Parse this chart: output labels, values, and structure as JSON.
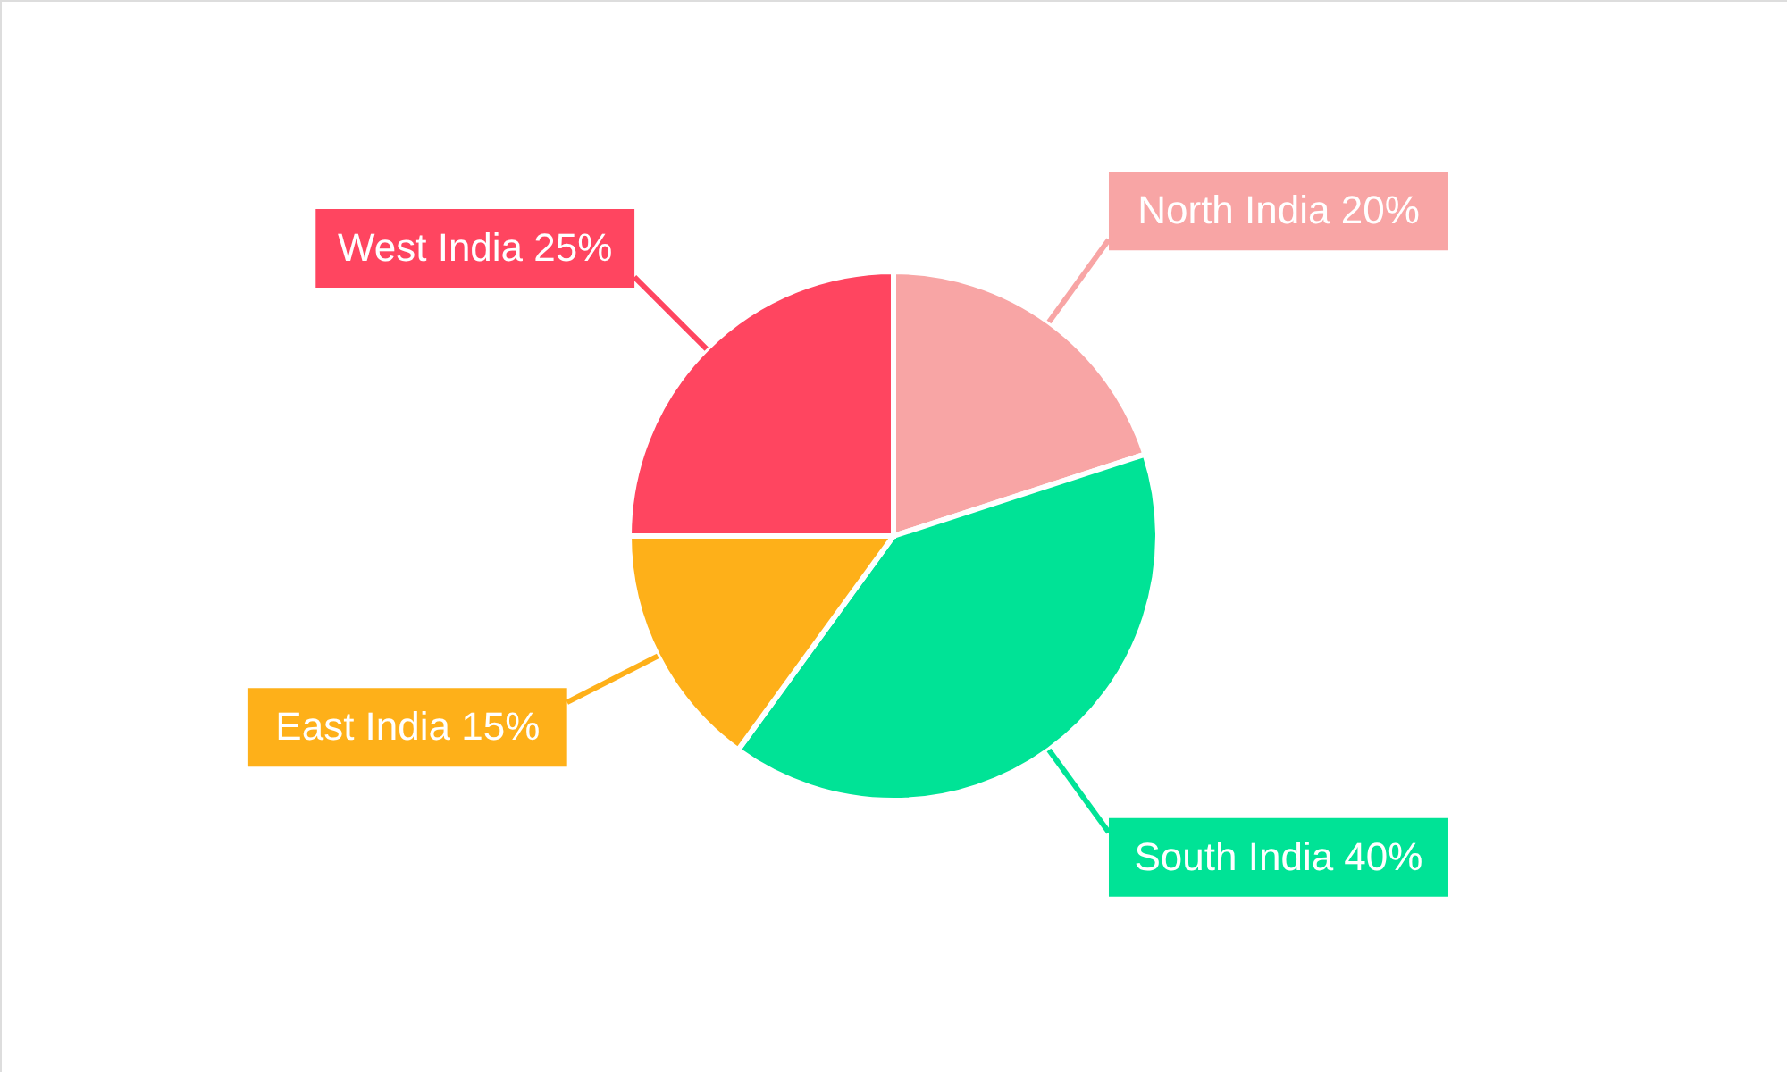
{
  "chart_data": {
    "type": "pie",
    "categories": [
      "North India",
      "South India",
      "East India",
      "West India"
    ],
    "values": [
      20,
      40,
      15,
      25
    ],
    "value_labels": [
      "20%",
      "40%",
      "15%",
      "25%"
    ],
    "colors": [
      "#f8a5a5",
      "#00e396",
      "#feb019",
      "#ff4560"
    ]
  }
}
